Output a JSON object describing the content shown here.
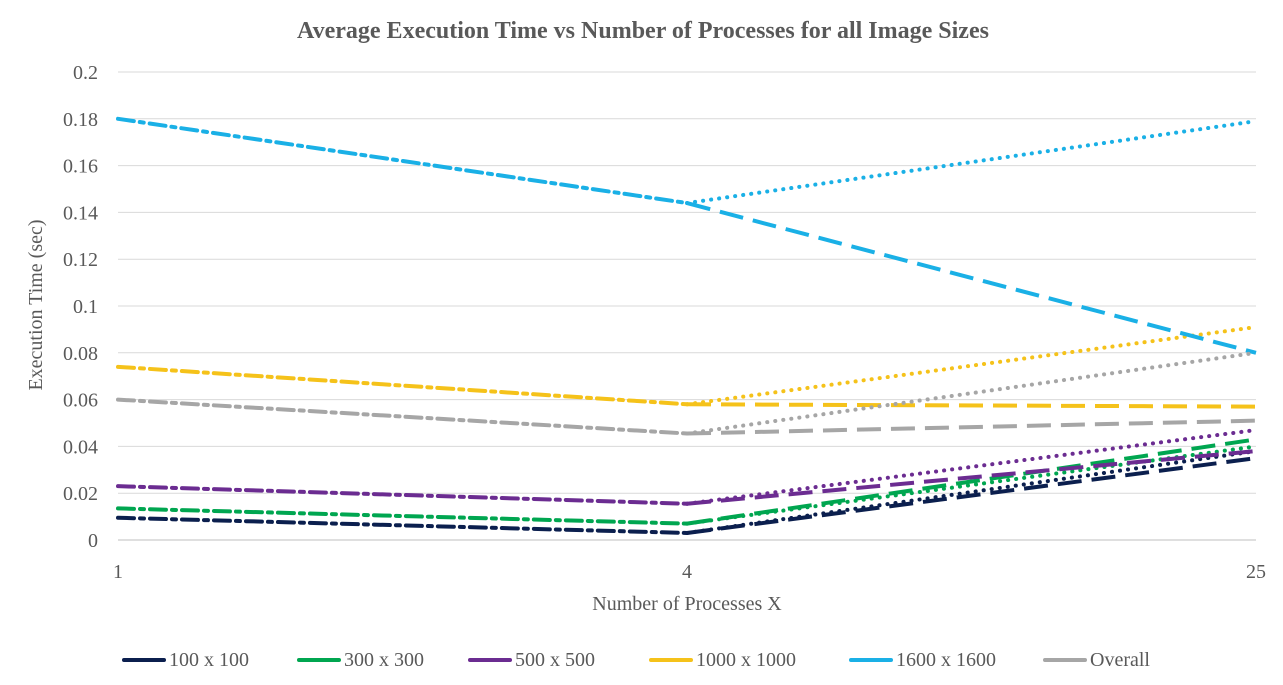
{
  "chart_data": {
    "type": "line",
    "title": "Average Execution Time vs Number of Processes for all Image Sizes",
    "xlabel": "Number of Processes X",
    "ylabel": "Execution Time (sec)",
    "categories": [
      "1",
      "4",
      "25"
    ],
    "ylim": [
      0,
      0.2
    ],
    "yticks": [
      "0",
      "0.02",
      "0.04",
      "0.06",
      "0.08",
      "0.1",
      "0.12",
      "0.14",
      "0.16",
      "0.18",
      "0.2"
    ],
    "grid": true,
    "legend_position": "bottom",
    "series": [
      {
        "name": "100 x 100",
        "color": "#0b1f4e",
        "values": [
          0.0095,
          0.003,
          0.035
        ],
        "trend_dotted_end": 0.038
      },
      {
        "name": "300 x 300",
        "color": "#00a650",
        "values": [
          0.0135,
          0.007,
          0.043
        ],
        "trend_dotted_end": 0.04
      },
      {
        "name": "500 x 500",
        "color": "#6b2c91",
        "values": [
          0.023,
          0.0155,
          0.038
        ],
        "trend_dotted_end": 0.047
      },
      {
        "name": "1000 x 1000",
        "color": "#f5c21a",
        "values": [
          0.074,
          0.058,
          0.057
        ],
        "trend_dotted_end": 0.091
      },
      {
        "name": "1600 x 1600",
        "color": "#1ab0e6",
        "values": [
          0.18,
          0.144,
          0.08
        ],
        "trend_dotted_end": 0.179
      },
      {
        "name": "Overall",
        "color": "#a6a6a6",
        "values": [
          0.06,
          0.0455,
          0.051
        ],
        "trend_dotted_end": 0.08
      }
    ]
  }
}
